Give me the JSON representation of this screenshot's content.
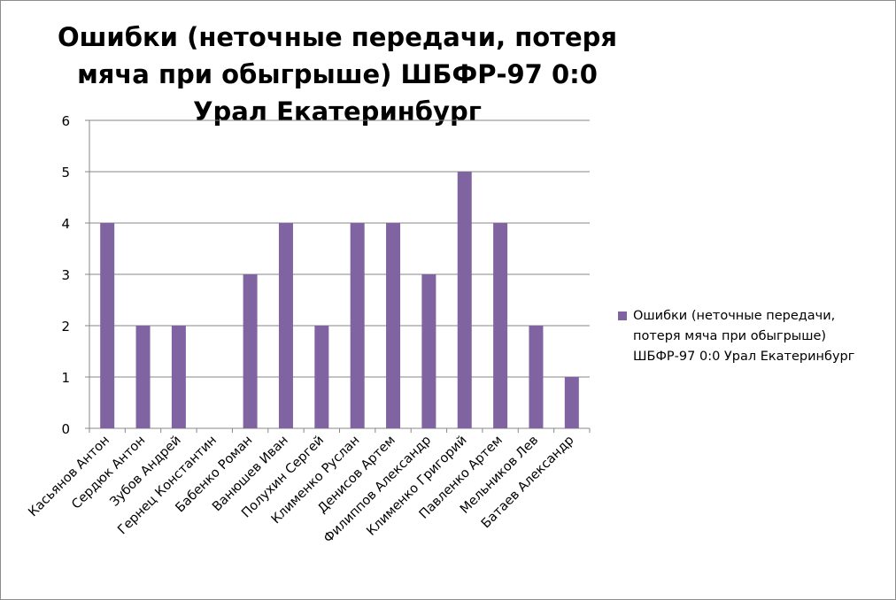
{
  "chart_data": {
    "type": "bar",
    "title": "Ошибки (неточные передачи, потеря мяча при обыгрыше) ШБФР-97  0:0  Урал Екатеринбург",
    "categories": [
      "Касьянов Антон",
      "Сердюк Антон",
      "Зубов Андрей",
      "Гернец Константин",
      "Бабенко Роман",
      "Ванюшев Иван",
      "Полухин Сергей",
      "Клименко Руслан",
      "Денисов Артем",
      "Филиппов Александр",
      "Клименко Григорий",
      "Павленко Артем",
      "Мельников Лев",
      "Батаев Александр"
    ],
    "series": [
      {
        "name": "Ошибки (неточные передачи, потеря мяча при обыгрыше) ШБФР-97  0:0  Урал Екатеринбург",
        "values": [
          4,
          2,
          2,
          0,
          3,
          4,
          2,
          4,
          4,
          3,
          5,
          4,
          2,
          1
        ],
        "color": "#8064a2"
      }
    ],
    "xlabel": "",
    "ylabel": "",
    "ylim": [
      0,
      6
    ],
    "yticks": [
      "0",
      "1",
      "2",
      "3",
      "4",
      "5",
      "6"
    ],
    "grid": true,
    "legend_position": "right"
  }
}
